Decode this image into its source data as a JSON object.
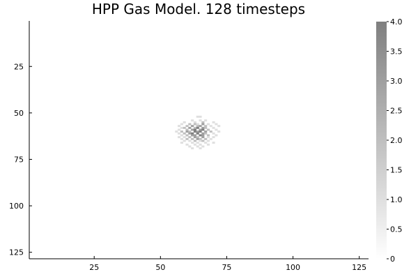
{
  "chart_data": {
    "type": "heatmap",
    "title": "HPP Gas Model. 128 timesteps",
    "xlabel": "",
    "ylabel": "",
    "x_ticks": [
      25,
      50,
      75,
      100,
      125
    ],
    "y_ticks": [
      25,
      50,
      75,
      100,
      125
    ],
    "xlim": [
      0.5,
      128.5
    ],
    "ylim": [
      0.5,
      128.5
    ],
    "y_axis_reversed": true,
    "grid": false,
    "colorbar": {
      "min": 0,
      "max": 4,
      "ticks": [
        "0",
        "0.5",
        "1.0",
        "1.5",
        "2.0",
        "2.5",
        "3.0",
        "3.5",
        "4.0"
      ],
      "color_low": "#ffffff",
      "color_high": "#7f7f7f"
    },
    "cells": [
      [
        64,
        52,
        1
      ],
      [
        65,
        52,
        1
      ],
      [
        62,
        54,
        1
      ],
      [
        65,
        54,
        1
      ],
      [
        67,
        54,
        1
      ],
      [
        59,
        55,
        1
      ],
      [
        63,
        55,
        1
      ],
      [
        66,
        55,
        2
      ],
      [
        70,
        55,
        1
      ],
      [
        58,
        56,
        1
      ],
      [
        61,
        56,
        2
      ],
      [
        63,
        56,
        2
      ],
      [
        64,
        56,
        1
      ],
      [
        66,
        56,
        3
      ],
      [
        68,
        56,
        1
      ],
      [
        71,
        56,
        1
      ],
      [
        57,
        57,
        1
      ],
      [
        60,
        57,
        2
      ],
      [
        62,
        57,
        3
      ],
      [
        64,
        57,
        2
      ],
      [
        65,
        57,
        3
      ],
      [
        67,
        57,
        2
      ],
      [
        69,
        57,
        1
      ],
      [
        72,
        57,
        1
      ],
      [
        58,
        58,
        1
      ],
      [
        59,
        58,
        2
      ],
      [
        61,
        58,
        3
      ],
      [
        63,
        58,
        2
      ],
      [
        64,
        58,
        4
      ],
      [
        66,
        58,
        3
      ],
      [
        67,
        58,
        2
      ],
      [
        70,
        58,
        1
      ],
      [
        57,
        59,
        1
      ],
      [
        60,
        59,
        2
      ],
      [
        62,
        59,
        3
      ],
      [
        63,
        59,
        4
      ],
      [
        65,
        59,
        3
      ],
      [
        66,
        59,
        4
      ],
      [
        68,
        59,
        2
      ],
      [
        71,
        59,
        1
      ],
      [
        56,
        60,
        1
      ],
      [
        58,
        60,
        2
      ],
      [
        60,
        60,
        3
      ],
      [
        61,
        60,
        2
      ],
      [
        63,
        60,
        4
      ],
      [
        64,
        60,
        3
      ],
      [
        65,
        60,
        4
      ],
      [
        67,
        60,
        3
      ],
      [
        69,
        60,
        2
      ],
      [
        72,
        60,
        1
      ],
      [
        57,
        61,
        1
      ],
      [
        59,
        61,
        2
      ],
      [
        61,
        61,
        3
      ],
      [
        62,
        61,
        4
      ],
      [
        64,
        61,
        4
      ],
      [
        66,
        61,
        3
      ],
      [
        67,
        61,
        2
      ],
      [
        70,
        61,
        1
      ],
      [
        58,
        62,
        1
      ],
      [
        60,
        62,
        2
      ],
      [
        62,
        62,
        3
      ],
      [
        63,
        62,
        3
      ],
      [
        65,
        62,
        4
      ],
      [
        66,
        62,
        3
      ],
      [
        68,
        62,
        2
      ],
      [
        71,
        62,
        1
      ],
      [
        57,
        63,
        1
      ],
      [
        59,
        63,
        1
      ],
      [
        61,
        63,
        2
      ],
      [
        63,
        63,
        3
      ],
      [
        64,
        63,
        2
      ],
      [
        66,
        63,
        3
      ],
      [
        68,
        63,
        1
      ],
      [
        70,
        63,
        1
      ],
      [
        58,
        64,
        1
      ],
      [
        60,
        64,
        2
      ],
      [
        62,
        64,
        2
      ],
      [
        64,
        64,
        3
      ],
      [
        65,
        64,
        2
      ],
      [
        67,
        64,
        2
      ],
      [
        69,
        64,
        1
      ],
      [
        59,
        65,
        1
      ],
      [
        61,
        65,
        1
      ],
      [
        63,
        65,
        2
      ],
      [
        65,
        65,
        1
      ],
      [
        66,
        65,
        2
      ],
      [
        68,
        65,
        1
      ],
      [
        58,
        66,
        1
      ],
      [
        62,
        66,
        1
      ],
      [
        64,
        66,
        1
      ],
      [
        67,
        66,
        1
      ],
      [
        70,
        66,
        1
      ],
      [
        60,
        67,
        1
      ],
      [
        63,
        67,
        1
      ],
      [
        65,
        67,
        1
      ],
      [
        68,
        67,
        1
      ],
      [
        61,
        68,
        1
      ],
      [
        64,
        68,
        1
      ],
      [
        66,
        68,
        1
      ],
      [
        62,
        69,
        1
      ],
      [
        65,
        69,
        1
      ]
    ]
  }
}
